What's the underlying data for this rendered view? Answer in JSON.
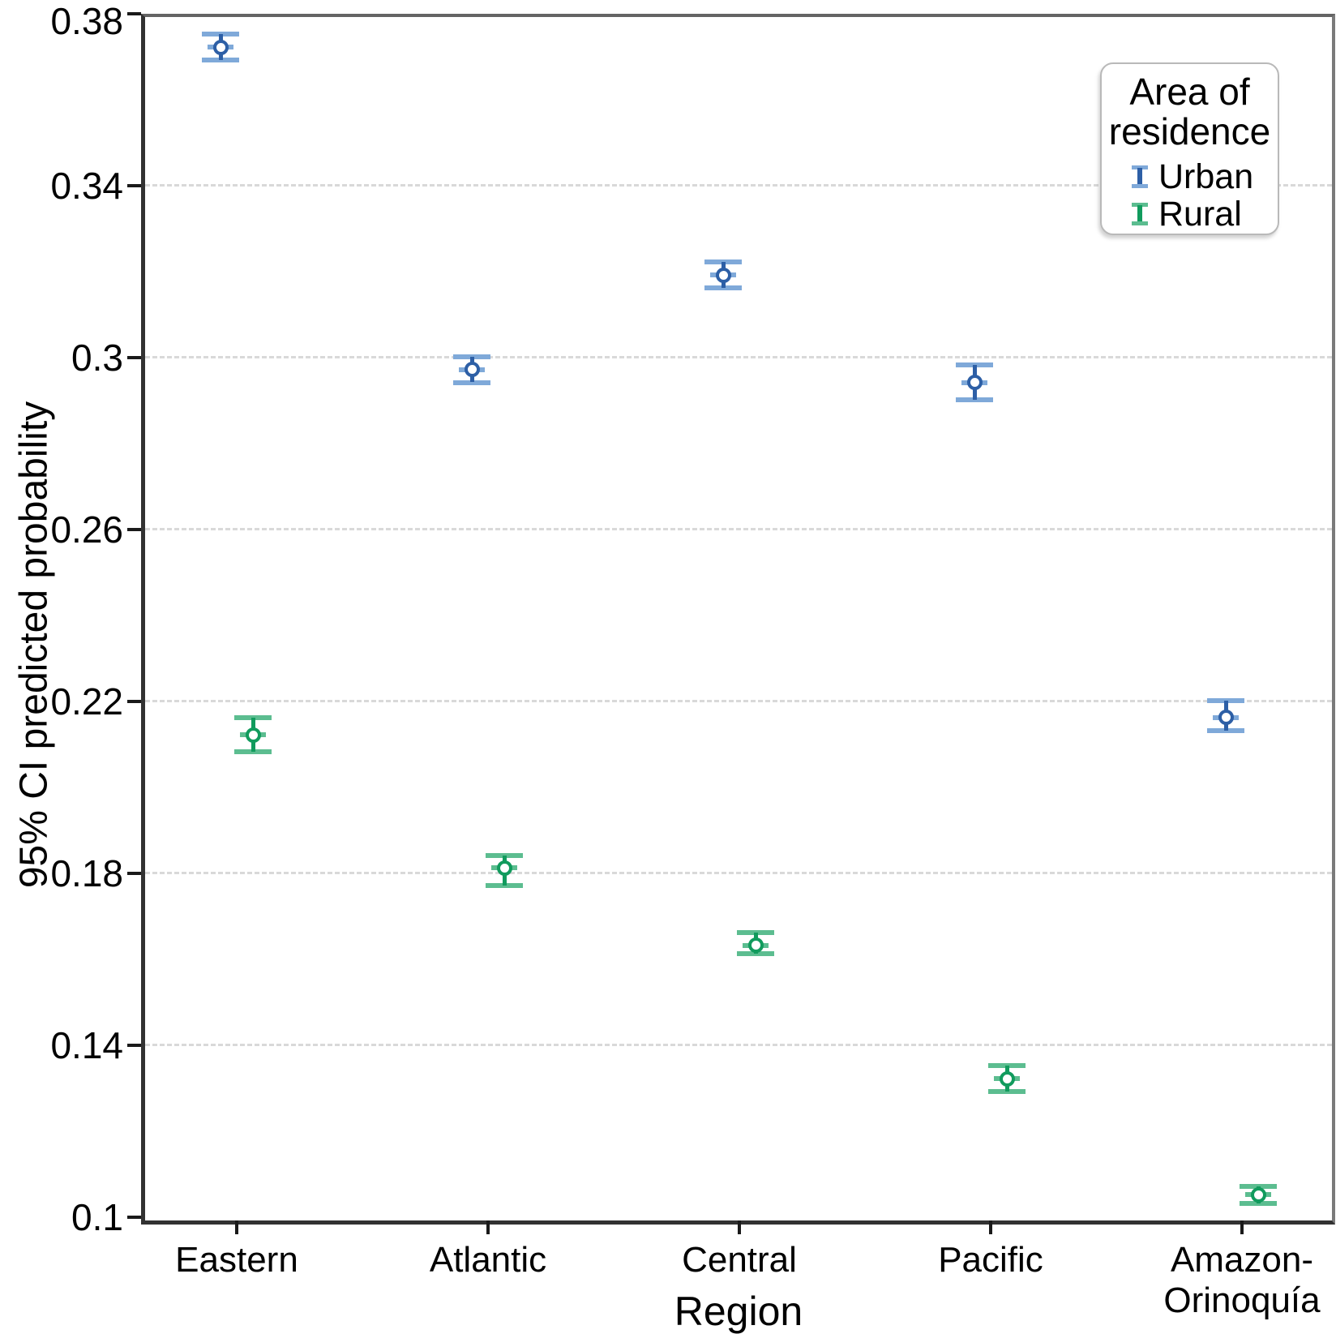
{
  "chart_data": {
    "type": "errorbar-point",
    "title": "",
    "xlabel": "Region",
    "ylabel": "95% CI predicted probability",
    "ylim": [
      0.1,
      0.38
    ],
    "grid": "horizontal-dashed",
    "yticks": [
      {
        "value": 0.1,
        "label": "0.1"
      },
      {
        "value": 0.14,
        "label": "0.14"
      },
      {
        "value": 0.18,
        "label": "0.18"
      },
      {
        "value": 0.22,
        "label": "0.22"
      },
      {
        "value": 0.26,
        "label": "0.26"
      },
      {
        "value": 0.3,
        "label": "0.3"
      },
      {
        "value": 0.34,
        "label": "0.34"
      },
      {
        "value": 0.38,
        "label": "0.38"
      }
    ],
    "categories": [
      "Eastern",
      "Atlantic",
      "Central",
      "Pacific",
      "Amazon-Orinoquía"
    ],
    "category_label_lines": [
      [
        "Eastern"
      ],
      [
        "Atlantic"
      ],
      [
        "Central"
      ],
      [
        "Pacific"
      ],
      [
        "Amazon-",
        "Orinoquía"
      ]
    ],
    "series": [
      {
        "name": "Urban",
        "color_dark": "#2d5fa6",
        "color_light": "#7fa9d9",
        "means": [
          0.373,
          0.298,
          0.32,
          0.295,
          0.217
        ],
        "ci_low": [
          0.37,
          0.295,
          0.317,
          0.291,
          0.214
        ],
        "ci_high": [
          0.376,
          0.301,
          0.323,
          0.299,
          0.221
        ]
      },
      {
        "name": "Rural",
        "color_dark": "#119b5d",
        "color_light": "#5cbd90",
        "means": [
          0.213,
          0.182,
          0.164,
          0.133,
          0.106
        ],
        "ci_low": [
          0.209,
          0.178,
          0.162,
          0.13,
          0.104
        ],
        "ci_high": [
          0.217,
          0.185,
          0.167,
          0.136,
          0.108
        ]
      }
    ],
    "legend": {
      "title": "Area of residence",
      "title_lines": [
        "Area of",
        "residence"
      ],
      "position": "top-right",
      "items": [
        {
          "label": "Urban"
        },
        {
          "label": "Rural"
        }
      ]
    },
    "colors": {
      "grid": "#d9d9d9",
      "axis_dark": "#323232",
      "border_gray": "#7a7a7a",
      "text": "#000000"
    }
  }
}
